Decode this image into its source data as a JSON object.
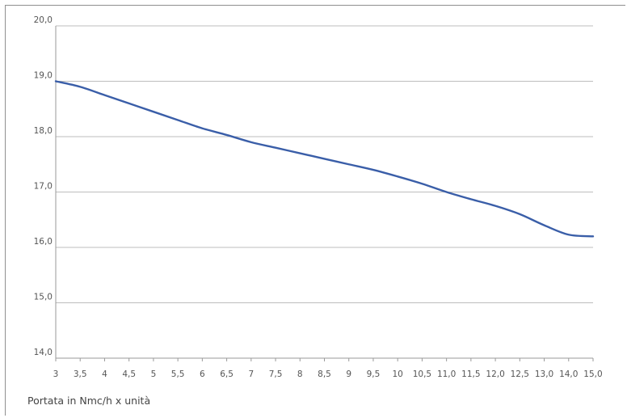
{
  "chart_data": {
    "type": "line",
    "title": "",
    "xlabel": "Portata in Nmc/h x unità",
    "ylabel": "",
    "x_ticks": [
      "3",
      "3,5",
      "4",
      "4,5",
      "5",
      "5,5",
      "6",
      "6,5",
      "7",
      "7,5",
      "8",
      "8,5",
      "9",
      "9,5",
      "10",
      "10,5",
      "11,0",
      "11,5",
      "12,0",
      "12,5",
      "13,0",
      "14,0",
      "15,0"
    ],
    "y_ticks": [
      "14,0",
      "15,0",
      "16,0",
      "17,0",
      "18,0",
      "19,0",
      "20,0"
    ],
    "ylim": [
      14,
      20
    ],
    "grid": true,
    "legend": "none",
    "series": [
      {
        "color": "#3a5ea8",
        "values": [
          19.0,
          18.9,
          18.75,
          18.6,
          18.45,
          18.3,
          18.15,
          18.03,
          17.9,
          17.8,
          17.7,
          17.6,
          17.5,
          17.4,
          17.28,
          17.15,
          17.0,
          16.87,
          16.75,
          16.6,
          16.4,
          16.23,
          16.2
        ]
      }
    ]
  }
}
